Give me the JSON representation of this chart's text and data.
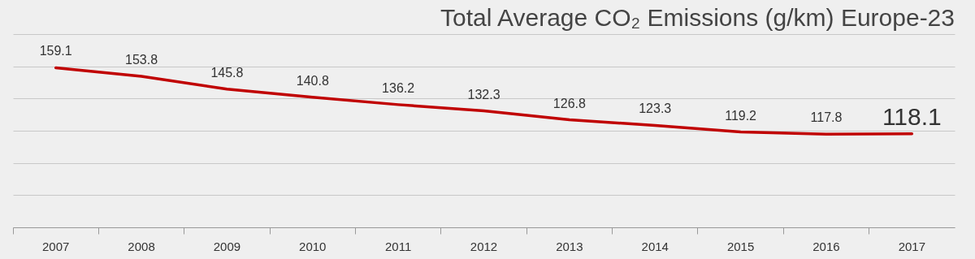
{
  "chart_data": {
    "type": "line",
    "title": "Total Average CO₂ Emissions (g/km) Europe-23",
    "categories": [
      "2007",
      "2008",
      "2009",
      "2010",
      "2011",
      "2012",
      "2013",
      "2014",
      "2015",
      "2016",
      "2017"
    ],
    "series": [
      {
        "color": "#c00000",
        "values": [
          159.1,
          153.8,
          145.8,
          140.8,
          136.2,
          132.3,
          126.8,
          123.3,
          119.2,
          117.8,
          118.1
        ]
      }
    ],
    "ylim": [
      60,
      180
    ],
    "yticks": [
      {
        "value": 60,
        "label": null
      },
      {
        "value": 80,
        "label": null
      },
      {
        "value": 100,
        "label": null
      },
      {
        "value": 120,
        "label": null
      },
      {
        "value": 140,
        "label": null
      },
      {
        "value": 160,
        "label": null
      },
      {
        "value": 180,
        "label": null
      }
    ],
    "grid": "y",
    "tick_labels": "x",
    "data_labels": true,
    "marker": "none",
    "line_style": "solid"
  }
}
